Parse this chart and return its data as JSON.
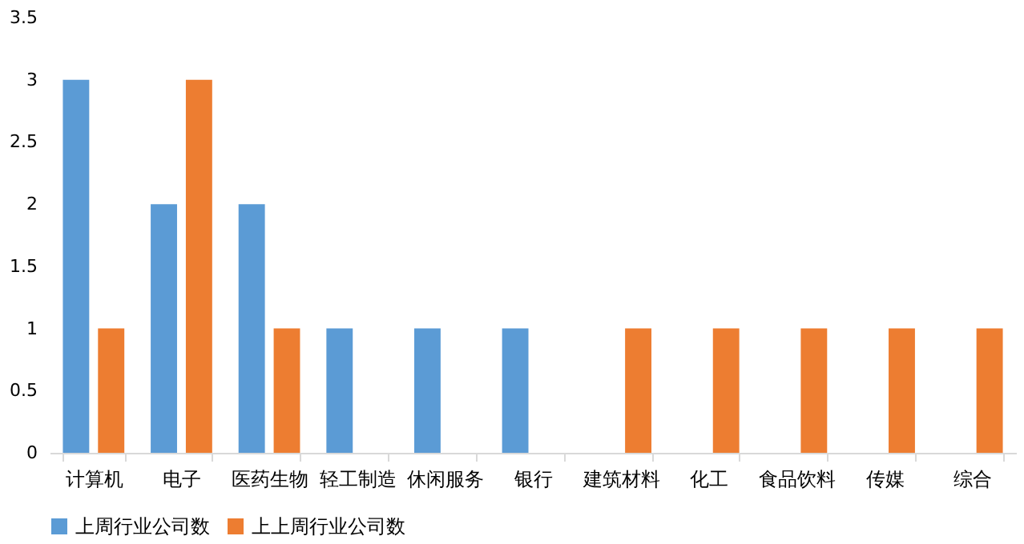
{
  "chart_data": {
    "type": "bar",
    "categories": [
      "计算机",
      "电子",
      "医药生物",
      "轻工制造",
      "休闲服务",
      "银行",
      "建筑材料",
      "化工",
      "食品饮料",
      "传媒",
      "综合"
    ],
    "series": [
      {
        "name": "上周行业公司数",
        "color": "#5b9bd5",
        "values": [
          3,
          2,
          2,
          1,
          1,
          1,
          0,
          0,
          0,
          0,
          0
        ]
      },
      {
        "name": "上上周行业公司数",
        "color": "#ed7d31",
        "values": [
          1,
          3,
          1,
          0,
          0,
          0,
          1,
          1,
          1,
          1,
          1
        ]
      }
    ],
    "ylim": [
      0,
      3.5
    ],
    "yticks": [
      0,
      0.5,
      1,
      1.5,
      2,
      2.5,
      3,
      3.5
    ],
    "grid": false,
    "legend": "bottom"
  }
}
